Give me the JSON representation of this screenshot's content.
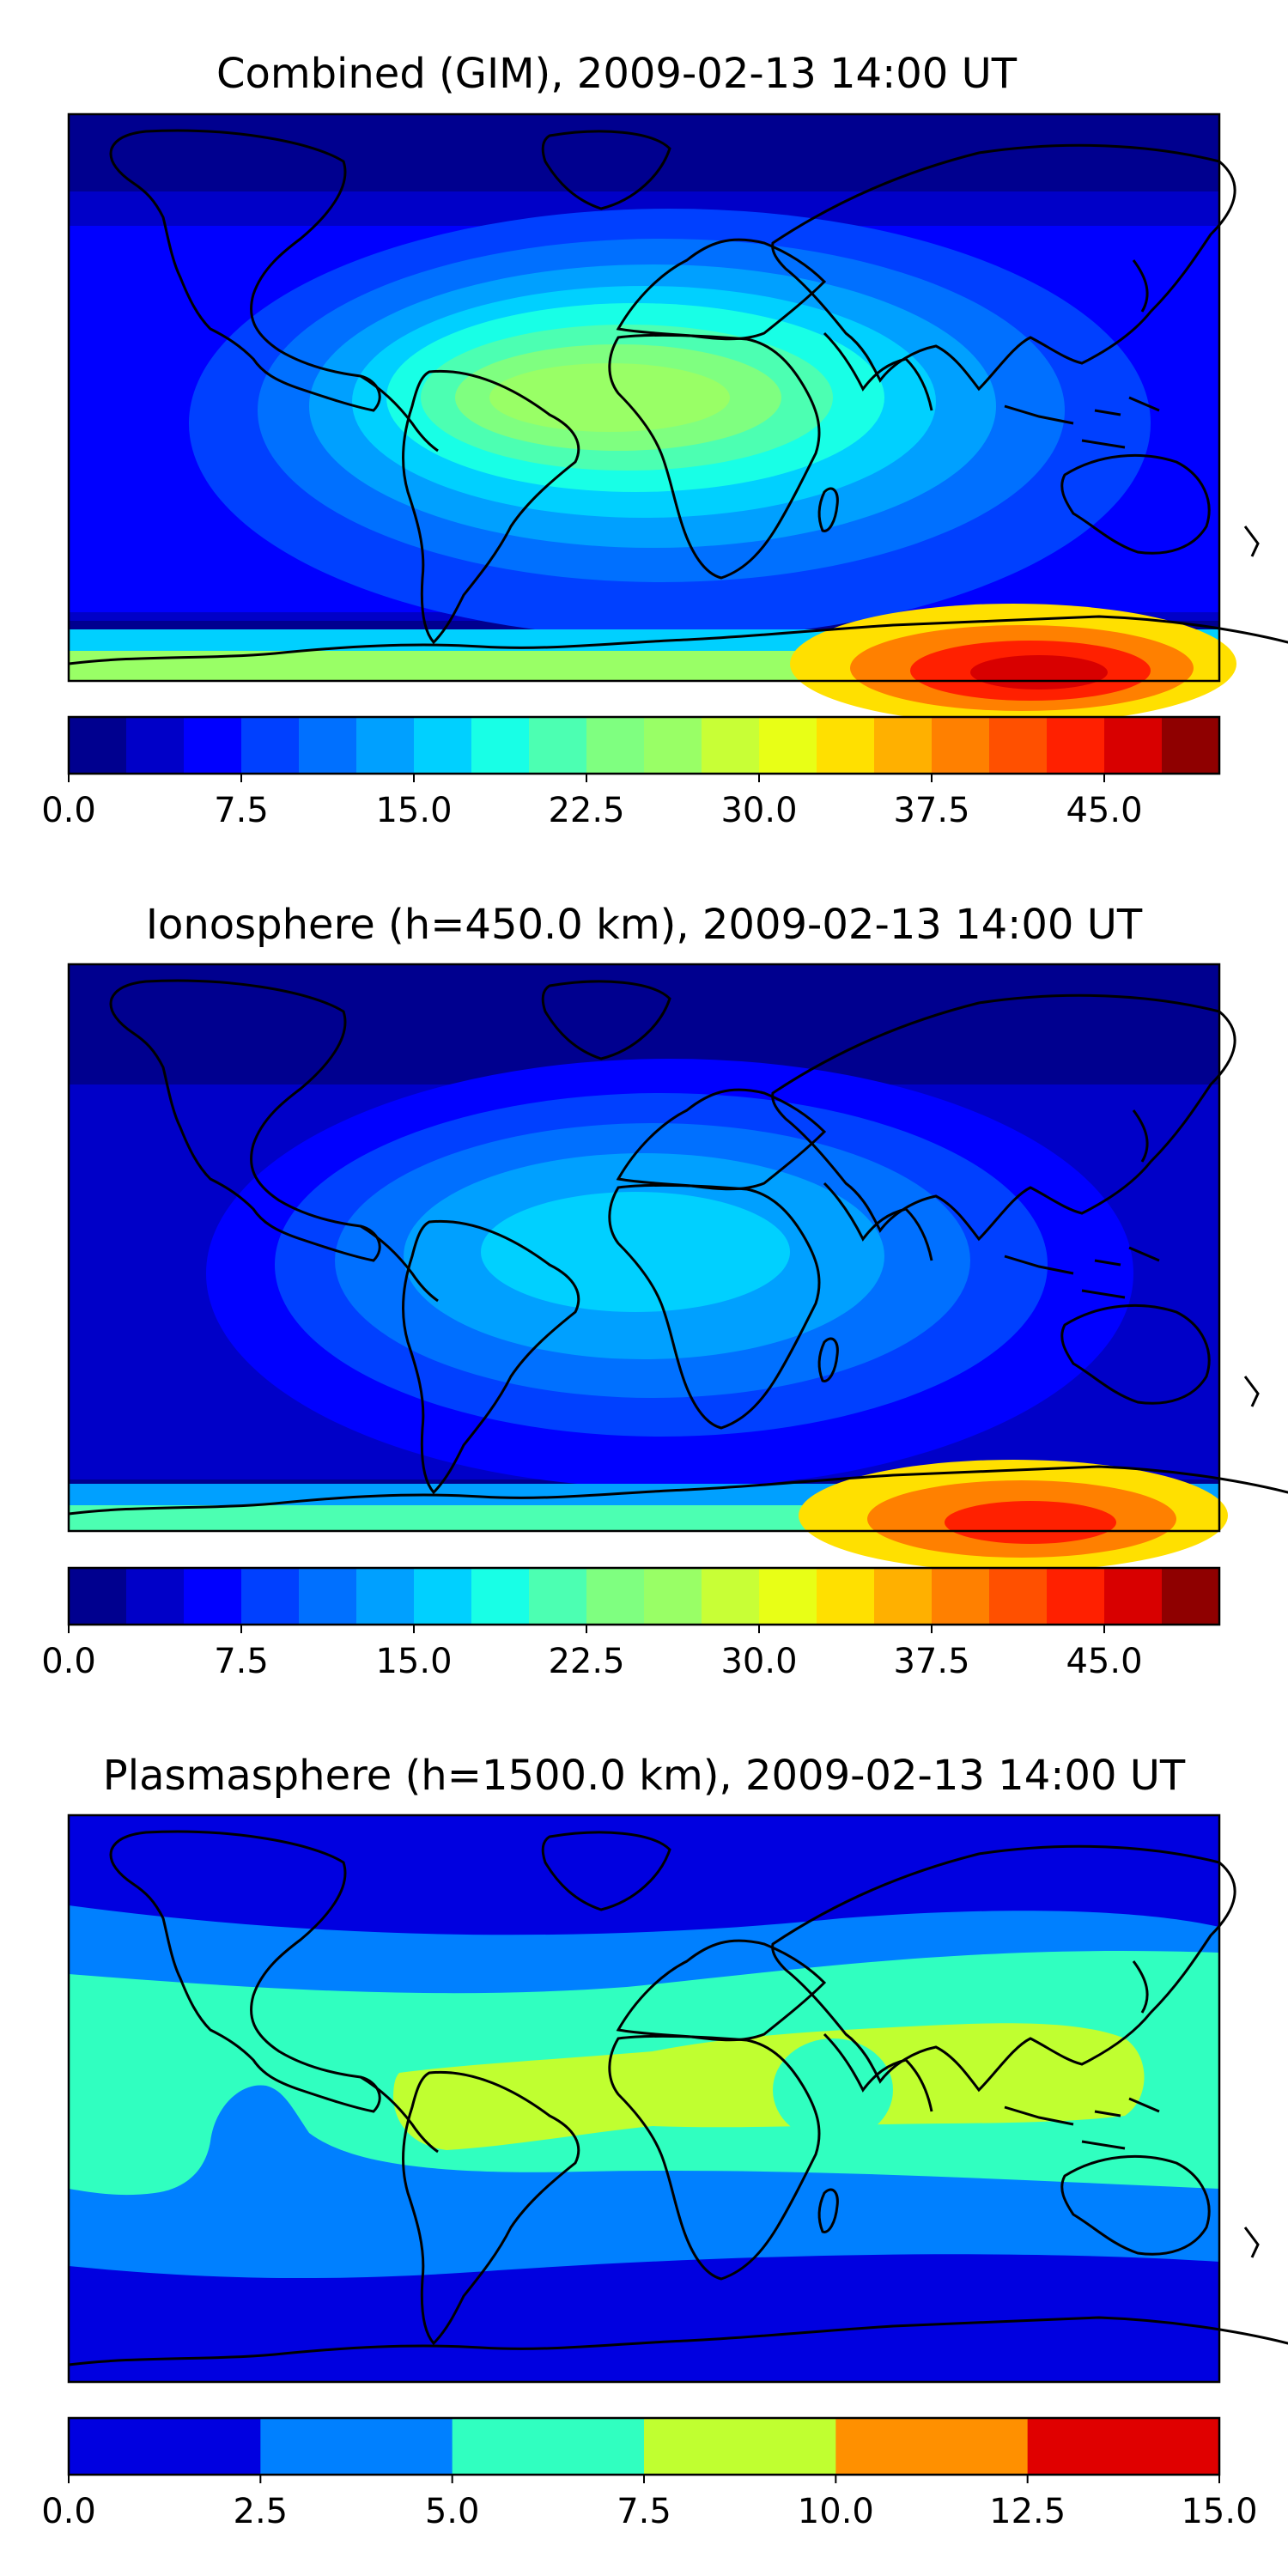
{
  "panels": [
    {
      "title": "Combined (GIM), 2009-02-13 14:00 UT",
      "colorbar": {
        "min": 0,
        "max": 50,
        "step": 2.5,
        "tick_labels": [
          "0.0",
          "7.5",
          "15.0",
          "22.5",
          "30.0",
          "37.5",
          "45.0"
        ],
        "colors": [
          "#00008f",
          "#0000c8",
          "#0000ff",
          "#0040ff",
          "#0070ff",
          "#00a0ff",
          "#00d0ff",
          "#18ffe6",
          "#4cffb2",
          "#7fff80",
          "#99ff66",
          "#c8ff36",
          "#e8ff16",
          "#ffe000",
          "#ffb000",
          "#ff8000",
          "#ff5000",
          "#ff2000",
          "#d80000",
          "#8f0000"
        ]
      }
    },
    {
      "title": "Ionosphere  (h=450.0 km), 2009-02-13 14:00 UT",
      "colorbar": {
        "min": 0,
        "max": 50,
        "step": 2.5,
        "tick_labels": [
          "0.0",
          "7.5",
          "15.0",
          "22.5",
          "30.0",
          "37.5",
          "45.0"
        ],
        "colors": [
          "#00008f",
          "#0000c8",
          "#0000ff",
          "#0040ff",
          "#0070ff",
          "#00a0ff",
          "#00d0ff",
          "#18ffe6",
          "#4cffb2",
          "#7fff80",
          "#99ff66",
          "#c8ff36",
          "#e8ff16",
          "#ffe000",
          "#ffb000",
          "#ff8000",
          "#ff5000",
          "#ff2000",
          "#d80000",
          "#8f0000"
        ]
      }
    },
    {
      "title": "Plasmasphere (h=1500.0 km), 2009-02-13 14:00 UT",
      "colorbar": {
        "min": 0,
        "max": 15,
        "step": 2.5,
        "tick_labels": [
          "0.0",
          "2.5",
          "5.0",
          "7.5",
          "10.0",
          "12.5",
          "15.0"
        ],
        "colors": [
          "#0000e0",
          "#0080ff",
          "#30ffc0",
          "#c0ff30",
          "#ff9000",
          "#e00000"
        ]
      }
    }
  ]
}
